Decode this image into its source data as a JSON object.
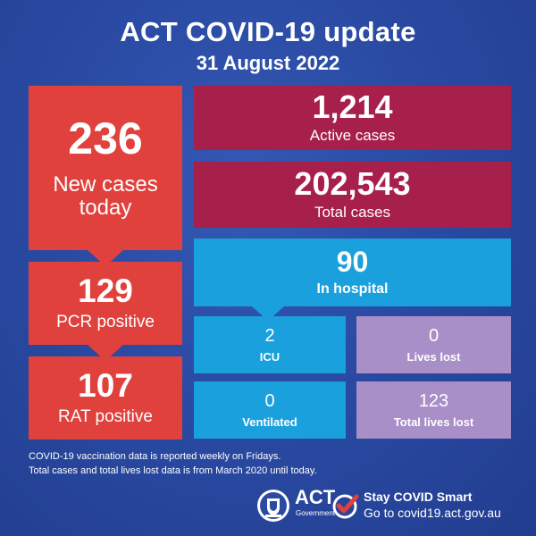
{
  "header": {
    "title": "ACT COVID-19 update",
    "date": "31 August 2022"
  },
  "tiles": {
    "new_cases": {
      "value": "236",
      "label": "New cases today"
    },
    "pcr": {
      "value": "129",
      "label": "PCR positive"
    },
    "rat": {
      "value": "107",
      "label": "RAT positive"
    },
    "active": {
      "value": "1,214",
      "label": "Active cases"
    },
    "total": {
      "value": "202,543",
      "label": "Total cases"
    },
    "hospital": {
      "value": "90",
      "label": "In hospital"
    },
    "icu": {
      "value": "2",
      "label": "ICU"
    },
    "ventilated": {
      "value": "0",
      "label": "Ventilated"
    },
    "lives_lost": {
      "value": "0",
      "label": "Lives lost"
    },
    "total_lives_lost": {
      "value": "123",
      "label": "Total lives lost"
    }
  },
  "footnotes": [
    "COVID-19 vaccination data is reported weekly on Fridays.",
    "Total cases and total lives lost data is from March 2020 until today."
  ],
  "footer": {
    "logo_text": "ACT",
    "logo_subtext": "Government",
    "smart_title": "Stay COVID Smart",
    "smart_url": "Go to covid19.act.gov.au"
  },
  "colors": {
    "background": "#2a4aa3",
    "red": "#e0413d",
    "maroon": "#a71f4b",
    "blue": "#1aa0dc",
    "lavender": "#a98fc7",
    "check_red": "#e0413d"
  },
  "icons": [
    "act-government-crest-icon",
    "check-circle-icon"
  ]
}
